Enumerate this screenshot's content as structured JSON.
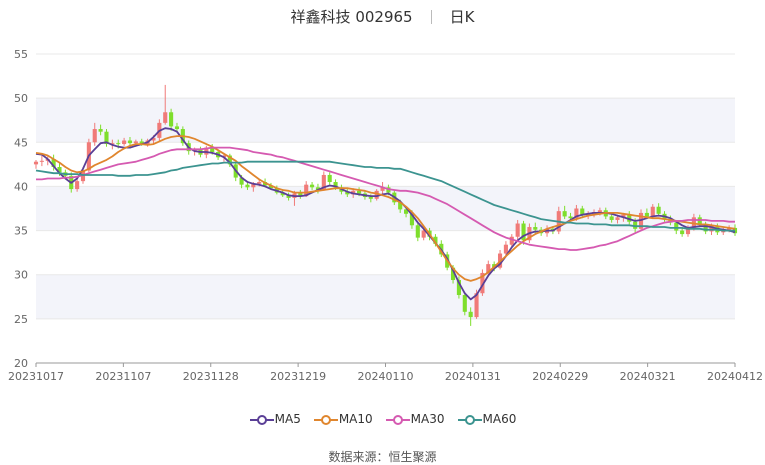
{
  "header": {
    "stock_name": "祥鑫科技",
    "stock_code": "002965",
    "period": "日K"
  },
  "source": {
    "label": "数据来源：",
    "value": "恒生聚源"
  },
  "colors": {
    "up": "#f07a78",
    "down": "#7ede2c",
    "ma5": "#5a3f96",
    "ma10": "#e0862e",
    "ma30": "#d55ab1",
    "ma60": "#3c9490",
    "grid": "#e8e8e8",
    "band": "#f3f4fa"
  },
  "chart_data": {
    "type": "candlestick",
    "title": "祥鑫科技 002965 日K",
    "ylim": [
      20,
      55
    ],
    "yticks": [
      20,
      25,
      30,
      35,
      40,
      45,
      50,
      55
    ],
    "xticks": [
      "20231017",
      "20231107",
      "20231128",
      "20231219",
      "20240110",
      "20240131",
      "20240229",
      "20240321",
      "20240412"
    ],
    "grid": true,
    "legend_position": "bottom",
    "candle_count": 120,
    "ohlc": [
      [
        42.5,
        43.0,
        42.0,
        42.8
      ],
      [
        42.8,
        43.5,
        42.3,
        42.9
      ],
      [
        42.9,
        43.4,
        42.4,
        43.1
      ],
      [
        43.1,
        43.6,
        41.8,
        42.2
      ],
      [
        42.2,
        42.6,
        41.2,
        41.6
      ],
      [
        41.6,
        41.9,
        40.8,
        41.2
      ],
      [
        41.2,
        41.6,
        39.3,
        39.7
      ],
      [
        39.7,
        41.0,
        39.4,
        40.6
      ],
      [
        40.6,
        42.2,
        40.3,
        41.8
      ],
      [
        41.8,
        45.4,
        41.6,
        45.0
      ],
      [
        45.0,
        47.2,
        44.6,
        46.5
      ],
      [
        46.5,
        47.0,
        45.8,
        46.2
      ],
      [
        46.2,
        46.5,
        44.5,
        44.8
      ],
      [
        44.8,
        45.3,
        44.2,
        44.9
      ],
      [
        44.9,
        45.3,
        44.3,
        44.8
      ],
      [
        44.8,
        45.5,
        44.6,
        45.2
      ],
      [
        45.2,
        45.6,
        44.6,
        44.9
      ],
      [
        44.9,
        45.3,
        44.5,
        45.1
      ],
      [
        45.1,
        45.4,
        44.6,
        44.8
      ],
      [
        44.8,
        45.4,
        44.5,
        45.2
      ],
      [
        45.2,
        45.8,
        44.8,
        45.5
      ],
      [
        45.5,
        47.6,
        45.2,
        47.2
      ],
      [
        47.2,
        51.5,
        47.0,
        48.4
      ],
      [
        48.4,
        48.8,
        46.3,
        46.8
      ],
      [
        46.8,
        47.2,
        46.1,
        46.5
      ],
      [
        46.5,
        46.8,
        44.6,
        44.9
      ],
      [
        44.9,
        45.2,
        43.6,
        44.0
      ],
      [
        44.0,
        44.4,
        43.5,
        44.2
      ],
      [
        44.2,
        44.5,
        43.3,
        43.6
      ],
      [
        43.6,
        44.6,
        43.2,
        44.4
      ],
      [
        44.4,
        44.8,
        43.6,
        43.9
      ],
      [
        43.9,
        44.2,
        43.0,
        43.3
      ],
      [
        43.3,
        43.8,
        42.8,
        43.5
      ],
      [
        43.5,
        43.7,
        42.2,
        42.5
      ],
      [
        42.5,
        42.7,
        40.6,
        41.0
      ],
      [
        41.0,
        41.3,
        39.8,
        40.2
      ],
      [
        40.2,
        40.6,
        39.6,
        39.9
      ],
      [
        39.9,
        40.5,
        39.4,
        40.3
      ],
      [
        40.3,
        40.8,
        40.0,
        40.5
      ],
      [
        40.5,
        40.9,
        39.9,
        40.1
      ],
      [
        40.1,
        40.4,
        39.6,
        39.8
      ],
      [
        39.8,
        40.1,
        39.1,
        39.3
      ],
      [
        39.3,
        39.7,
        38.8,
        39.0
      ],
      [
        39.0,
        39.3,
        38.4,
        38.7
      ],
      [
        38.7,
        39.5,
        37.8,
        39.2
      ],
      [
        39.2,
        39.6,
        38.6,
        38.9
      ],
      [
        38.9,
        40.6,
        38.8,
        40.2
      ],
      [
        40.2,
        40.5,
        39.6,
        39.9
      ],
      [
        39.9,
        40.3,
        39.2,
        39.6
      ],
      [
        39.6,
        41.7,
        39.5,
        41.3
      ],
      [
        41.3,
        41.6,
        40.2,
        40.5
      ],
      [
        40.5,
        40.8,
        39.6,
        39.9
      ],
      [
        39.9,
        40.2,
        39.1,
        39.4
      ],
      [
        39.4,
        39.7,
        38.8,
        39.1
      ],
      [
        39.1,
        39.8,
        38.7,
        39.5
      ],
      [
        39.5,
        39.9,
        38.9,
        39.2
      ],
      [
        39.2,
        39.5,
        38.5,
        38.8
      ],
      [
        38.8,
        39.1,
        38.2,
        38.6
      ],
      [
        38.6,
        39.7,
        38.4,
        39.5
      ],
      [
        39.5,
        40.5,
        39.2,
        39.9
      ],
      [
        39.9,
        40.2,
        39.0,
        39.3
      ],
      [
        39.3,
        39.6,
        37.9,
        38.2
      ],
      [
        38.2,
        38.5,
        37.0,
        37.4
      ],
      [
        37.4,
        37.7,
        36.5,
        36.9
      ],
      [
        36.9,
        37.3,
        35.2,
        35.6
      ],
      [
        35.6,
        35.9,
        33.8,
        34.2
      ],
      [
        34.2,
        35.3,
        33.9,
        35.0
      ],
      [
        35.0,
        35.3,
        33.9,
        34.3
      ],
      [
        34.3,
        34.6,
        33.2,
        33.5
      ],
      [
        33.5,
        33.9,
        32.0,
        32.3
      ],
      [
        32.3,
        32.6,
        30.5,
        30.8
      ],
      [
        30.8,
        31.1,
        29.0,
        29.4
      ],
      [
        29.4,
        29.8,
        27.3,
        27.7
      ],
      [
        27.7,
        28.0,
        25.4,
        25.8
      ],
      [
        25.8,
        26.3,
        24.2,
        25.2
      ],
      [
        25.2,
        28.3,
        25.0,
        27.9
      ],
      [
        27.9,
        30.6,
        27.6,
        30.2
      ],
      [
        30.2,
        31.6,
        30.0,
        31.2
      ],
      [
        31.2,
        31.5,
        30.4,
        30.8
      ],
      [
        30.8,
        32.8,
        30.6,
        32.4
      ],
      [
        32.4,
        33.8,
        32.1,
        33.4
      ],
      [
        33.4,
        34.6,
        33.0,
        34.3
      ],
      [
        34.3,
        36.2,
        34.0,
        35.8
      ],
      [
        35.8,
        36.1,
        33.4,
        33.9
      ],
      [
        33.9,
        35.8,
        33.6,
        35.4
      ],
      [
        35.4,
        35.9,
        34.6,
        35.1
      ],
      [
        35.1,
        35.4,
        34.4,
        34.7
      ],
      [
        34.7,
        35.6,
        34.3,
        35.2
      ],
      [
        35.2,
        35.5,
        34.6,
        34.9
      ],
      [
        34.9,
        37.7,
        34.6,
        37.2
      ],
      [
        37.2,
        37.8,
        36.3,
        36.6
      ],
      [
        36.6,
        37.0,
        36.0,
        36.4
      ],
      [
        36.4,
        37.9,
        36.1,
        37.5
      ],
      [
        37.5,
        37.8,
        36.4,
        36.7
      ],
      [
        36.7,
        37.2,
        36.3,
        36.9
      ],
      [
        36.9,
        37.4,
        36.5,
        37.1
      ],
      [
        37.1,
        37.6,
        36.7,
        37.3
      ],
      [
        37.3,
        37.6,
        36.3,
        36.6
      ],
      [
        36.6,
        37.0,
        35.9,
        36.2
      ],
      [
        36.2,
        36.8,
        35.8,
        36.5
      ],
      [
        36.5,
        37.0,
        36.0,
        36.8
      ],
      [
        36.8,
        37.2,
        35.7,
        36.0
      ],
      [
        36.0,
        36.4,
        34.8,
        35.2
      ],
      [
        35.2,
        37.4,
        35.0,
        37.0
      ],
      [
        37.0,
        37.5,
        36.3,
        36.6
      ],
      [
        36.6,
        38.0,
        36.4,
        37.7
      ],
      [
        37.7,
        38.1,
        36.6,
        36.9
      ],
      [
        36.9,
        37.2,
        36.0,
        36.3
      ],
      [
        36.3,
        36.7,
        35.6,
        35.9
      ],
      [
        35.9,
        36.2,
        34.6,
        35.0
      ],
      [
        35.0,
        35.3,
        34.3,
        34.6
      ],
      [
        34.6,
        35.6,
        34.3,
        35.3
      ],
      [
        35.3,
        36.9,
        35.0,
        36.5
      ],
      [
        36.5,
        36.8,
        35.4,
        35.7
      ],
      [
        35.7,
        36.0,
        34.6,
        34.9
      ],
      [
        34.9,
        35.8,
        34.5,
        35.4
      ],
      [
        35.4,
        35.8,
        34.5,
        34.8
      ],
      [
        34.8,
        35.3,
        34.5,
        35.0
      ],
      [
        35.0,
        35.6,
        34.8,
        35.3
      ],
      [
        35.3,
        35.7,
        34.4,
        34.7
      ]
    ],
    "series": [
      {
        "name": "MA5",
        "key": "ma5",
        "values": [
          43.7,
          43.6,
          43.1,
          42.3,
          41.5,
          40.9,
          40.4,
          40.9,
          42.0,
          43.5,
          44.2,
          44.9,
          45.0,
          44.7,
          44.5,
          44.4,
          44.4,
          44.6,
          44.8,
          45.0,
          45.6,
          46.3,
          46.6,
          46.5,
          46.2,
          45.3,
          44.4,
          44.0,
          43.9,
          43.9,
          43.8,
          43.6,
          43.3,
          42.7,
          41.8,
          41.0,
          40.5,
          40.3,
          40.2,
          40.0,
          39.7,
          39.5,
          39.3,
          39.0,
          38.9,
          38.9,
          39.0,
          39.3,
          39.6,
          39.9,
          40.1,
          40.0,
          39.7,
          39.4,
          39.2,
          39.1,
          39.0,
          38.9,
          38.9,
          39.1,
          39.2,
          38.8,
          38.3,
          37.6,
          36.8,
          35.9,
          35.2,
          34.4,
          33.6,
          32.8,
          31.8,
          30.5,
          29.1,
          27.9,
          27.2,
          27.7,
          28.8,
          29.9,
          30.7,
          31.2,
          32.1,
          33.1,
          33.9,
          34.4,
          34.7,
          34.9,
          34.9,
          35.0,
          35.0,
          35.4,
          35.8,
          36.2,
          36.6,
          36.8,
          36.9,
          37.0,
          37.0,
          37.0,
          36.9,
          36.7,
          36.5,
          36.3,
          36.1,
          36.2,
          36.4,
          36.6,
          36.7,
          36.6,
          36.4,
          36.0,
          35.6,
          35.3,
          35.4,
          35.5,
          35.5,
          35.4,
          35.2,
          35.1,
          35.0,
          34.8
        ]
      },
      {
        "name": "MA10",
        "key": "ma10",
        "values": [
          43.8,
          43.7,
          43.5,
          43.1,
          42.7,
          42.2,
          41.8,
          41.6,
          41.7,
          42.0,
          42.4,
          42.7,
          43.0,
          43.4,
          43.9,
          44.3,
          44.6,
          44.8,
          44.8,
          44.7,
          44.8,
          45.1,
          45.4,
          45.6,
          45.7,
          45.7,
          45.6,
          45.4,
          45.1,
          44.8,
          44.5,
          44.1,
          43.7,
          43.3,
          42.9,
          42.3,
          41.8,
          41.3,
          40.8,
          40.4,
          40.1,
          39.8,
          39.6,
          39.5,
          39.3,
          39.3,
          39.3,
          39.4,
          39.5,
          39.6,
          39.7,
          39.8,
          39.8,
          39.8,
          39.7,
          39.6,
          39.5,
          39.3,
          39.2,
          39.0,
          38.8,
          38.5,
          38.2,
          37.7,
          37.1,
          36.4,
          35.5,
          34.6,
          33.6,
          32.6,
          31.6,
          30.7,
          30.0,
          29.5,
          29.3,
          29.5,
          29.8,
          30.3,
          30.9,
          31.5,
          32.1,
          32.7,
          33.3,
          33.8,
          34.2,
          34.6,
          34.9,
          35.2,
          35.4,
          35.6,
          35.8,
          36.1,
          36.3,
          36.5,
          36.7,
          36.8,
          36.9,
          37.0,
          37.0,
          37.0,
          36.9,
          36.8,
          36.7,
          36.6,
          36.5,
          36.4,
          36.4,
          36.3,
          36.2,
          36.1,
          36.0,
          35.9,
          35.8,
          35.7,
          35.7,
          35.6,
          35.5,
          35.4,
          35.3,
          35.2
        ]
      },
      {
        "name": "MA30",
        "key": "ma30",
        "values": [
          40.8,
          40.8,
          40.9,
          40.9,
          40.9,
          41.0,
          41.0,
          41.1,
          41.3,
          41.5,
          41.7,
          41.9,
          42.1,
          42.3,
          42.5,
          42.6,
          42.7,
          42.8,
          43.0,
          43.2,
          43.4,
          43.7,
          43.9,
          44.1,
          44.2,
          44.2,
          44.2,
          44.2,
          44.2,
          44.3,
          44.4,
          44.4,
          44.4,
          44.4,
          44.3,
          44.2,
          44.1,
          43.9,
          43.8,
          43.7,
          43.6,
          43.4,
          43.3,
          43.1,
          42.9,
          42.7,
          42.5,
          42.3,
          42.1,
          41.9,
          41.7,
          41.5,
          41.3,
          41.1,
          40.9,
          40.7,
          40.5,
          40.3,
          40.1,
          39.9,
          39.7,
          39.6,
          39.5,
          39.5,
          39.4,
          39.3,
          39.1,
          38.9,
          38.6,
          38.3,
          38.0,
          37.6,
          37.2,
          36.8,
          36.4,
          36.0,
          35.6,
          35.2,
          34.8,
          34.5,
          34.2,
          34.0,
          33.8,
          33.6,
          33.4,
          33.3,
          33.2,
          33.1,
          33.0,
          32.9,
          32.9,
          32.8,
          32.8,
          32.9,
          33.0,
          33.1,
          33.3,
          33.4,
          33.6,
          33.8,
          34.1,
          34.4,
          34.7,
          35.0,
          35.3,
          35.5,
          35.7,
          35.9,
          36.0,
          36.1,
          36.1,
          36.2,
          36.2,
          36.2,
          36.2,
          36.1,
          36.1,
          36.1,
          36.0,
          36.0
        ]
      },
      {
        "name": "MA60",
        "key": "ma60",
        "values": [
          41.8,
          41.7,
          41.6,
          41.5,
          41.5,
          41.4,
          41.4,
          41.4,
          41.3,
          41.3,
          41.3,
          41.3,
          41.3,
          41.3,
          41.2,
          41.2,
          41.2,
          41.3,
          41.3,
          41.3,
          41.4,
          41.5,
          41.6,
          41.8,
          41.9,
          42.1,
          42.2,
          42.3,
          42.4,
          42.5,
          42.6,
          42.6,
          42.7,
          42.7,
          42.7,
          42.7,
          42.8,
          42.8,
          42.8,
          42.8,
          42.8,
          42.8,
          42.8,
          42.8,
          42.8,
          42.8,
          42.8,
          42.8,
          42.8,
          42.8,
          42.8,
          42.7,
          42.6,
          42.5,
          42.4,
          42.3,
          42.2,
          42.2,
          42.1,
          42.1,
          42.1,
          42.0,
          42.0,
          41.8,
          41.6,
          41.4,
          41.2,
          41.0,
          40.8,
          40.6,
          40.3,
          40.0,
          39.7,
          39.4,
          39.1,
          38.8,
          38.5,
          38.2,
          37.9,
          37.7,
          37.5,
          37.3,
          37.1,
          36.9,
          36.7,
          36.5,
          36.3,
          36.2,
          36.1,
          36.0,
          35.9,
          35.9,
          35.8,
          35.8,
          35.8,
          35.7,
          35.7,
          35.7,
          35.6,
          35.6,
          35.6,
          35.6,
          35.5,
          35.5,
          35.5,
          35.4,
          35.4,
          35.4,
          35.3,
          35.3,
          35.3,
          35.2,
          35.2,
          35.2,
          35.1,
          35.1,
          35.1,
          35.0,
          35.0,
          35.0
        ]
      }
    ]
  }
}
